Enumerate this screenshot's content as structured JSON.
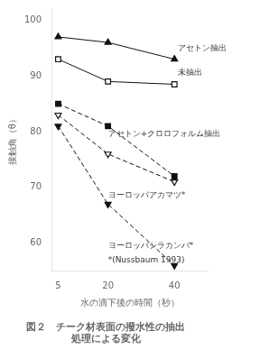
{
  "chart_data": {
    "type": "line",
    "title": "図２　チーク材表面の撥水性の抽出",
    "subtitle": "処理による変化",
    "x_label": "水の滴下後の時間（秒）",
    "y_label": "接触角（θ）",
    "x": [
      5,
      20,
      40
    ],
    "series": [
      {
        "color": "#111111",
        "values": [
          97,
          96,
          93
        ],
        "marker": "triangle_up",
        "line_style": "solid"
      },
      {
        "color": "#111111",
        "values": [
          93,
          89,
          88.5
        ],
        "marker": "square_open",
        "line_style": "solid"
      },
      {
        "color": "#111111",
        "values": [
          85,
          81,
          72
        ],
        "marker": "square",
        "line_style": "dashed"
      },
      {
        "color": "#111111",
        "values": [
          83,
          76,
          71
        ],
        "marker": "triangle_down_open",
        "line_style": "dashed"
      },
      {
        "color": "#111111",
        "values": [
          81,
          67,
          56
        ],
        "marker": "triangle_down",
        "line_style": "dashed"
      }
    ],
    "annotations": [
      {
        "x": 41,
        "y": 95,
        "text": "アセトン抽出"
      },
      {
        "x": 41,
        "y": 90.5,
        "text": "未抽出"
      },
      {
        "x": 20,
        "y": 79.5,
        "text": "アセトン+クロロフォルム抽出"
      },
      {
        "x": 20,
        "y": 68.5,
        "text": "ヨーロッパアカマツ*"
      },
      {
        "x": 20,
        "y": 59.5,
        "text": "ヨーロッパシラカンバ*"
      },
      {
        "x": 20,
        "y": 57.0,
        "text": "*(Nussbaum 1993)"
      }
    ],
    "xlim": [
      3,
      50
    ],
    "ylim": [
      55,
      102
    ],
    "xticks": [
      5,
      20,
      40
    ],
    "yticks": [
      60,
      70,
      80,
      90,
      100
    ],
    "grid": false
  }
}
